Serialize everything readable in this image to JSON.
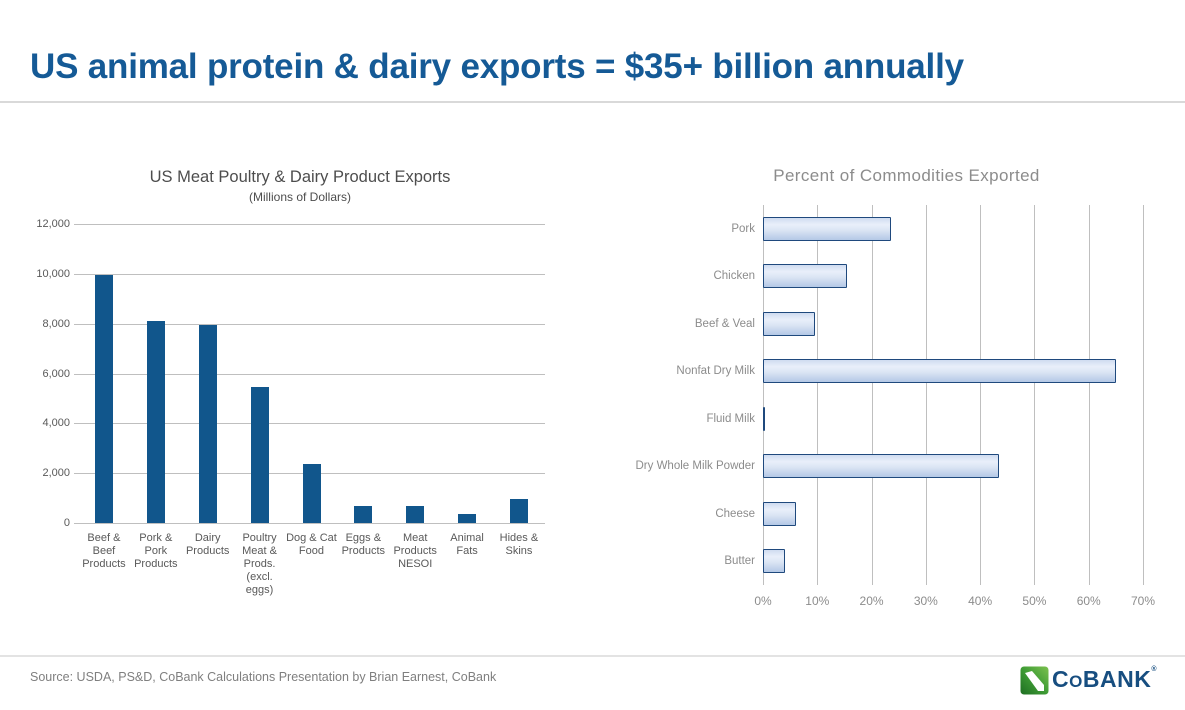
{
  "header": {
    "title": "US animal protein & dairy exports = $35+ billion annually"
  },
  "chart_data": [
    {
      "type": "bar",
      "title": "US Meat Poultry & Dairy Product Exports",
      "subtitle": "(Millions of Dollars)",
      "categories": [
        "Beef & Beef Products",
        "Pork & Pork Products",
        "Dairy Products",
        "Poultry Meat & Prods. (excl. eggs)",
        "Dog & Cat Food",
        "Eggs & Products",
        "Meat Products NESOI",
        "Animal Fats",
        "Hides & Skins"
      ],
      "values": [
        9950,
        8100,
        7950,
        5450,
        2350,
        700,
        700,
        350,
        950
      ],
      "xlabel": "",
      "ylabel": "",
      "ylim": [
        0,
        12000
      ],
      "ytick_interval": 2000,
      "ytick_labels": [
        "12,000",
        "10,000",
        "8,000",
        "6,000",
        "4,000",
        "2,000",
        "0"
      ],
      "grid": true,
      "legend": false
    },
    {
      "type": "bar",
      "orientation": "horizontal",
      "title": "Percent of Commodities Exported",
      "categories": [
        "Pork",
        "Chicken",
        "Beef & Veal",
        "Nonfat Dry Milk",
        "Fluid Milk",
        "Dry Whole Milk Powder",
        "Cheese",
        "Butter"
      ],
      "values": [
        23.5,
        15.5,
        9.5,
        65,
        0.4,
        43.5,
        6,
        4
      ],
      "xlabel": "",
      "ylabel": "",
      "xlim": [
        0,
        70
      ],
      "xtick_labels": [
        "0%",
        "10%",
        "20%",
        "30%",
        "40%",
        "50%",
        "60%",
        "70%"
      ],
      "grid": true,
      "legend": false
    }
  ],
  "footer": {
    "source": "Source: USDA, PS&D, CoBank Calculations Presentation by Brian Earnest, CoBank"
  },
  "logo": {
    "name": "CoBank",
    "part_c": "C",
    "part_o": "O",
    "part_bank": "BANK",
    "trademark": "®"
  },
  "colors": {
    "title_blue": "#155A96",
    "bar_blue": "#11568C",
    "hbar_border": "#1F497D",
    "hbar_fill_light": "#E9EFFA",
    "hbar_fill_dark": "#B4C8E6",
    "grid_gray": "#BFBFBF",
    "logo_green": "#3F9C35",
    "logo_blue": "#174E80"
  }
}
